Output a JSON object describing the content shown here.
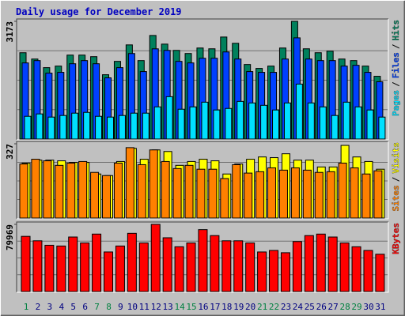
{
  "chart_data": [
    {
      "type": "bar",
      "title": "Daily usage for December 2019",
      "ylim": [
        0,
        3173
      ],
      "yticks": [
        3173
      ],
      "series_label_separator": "/",
      "series": [
        {
          "name": "Hits",
          "color": "#00805c",
          "values": [
            2327,
            2157,
            1925,
            1967,
            2263,
            2263,
            2221,
            1734,
            2094,
            2538,
            2115,
            2792,
            2559,
            2390,
            2306,
            2454,
            2433,
            2750,
            2581,
            2009,
            1904,
            1967,
            2454,
            3173,
            2433,
            2327,
            2369,
            2157,
            2115,
            1967,
            1692
          ]
        },
        {
          "name": "Files",
          "color": "#0040ff",
          "values": [
            2052,
            2115,
            1777,
            1798,
            2030,
            2115,
            2030,
            1650,
            1925,
            2305,
            1819,
            2432,
            2390,
            2094,
            2052,
            2178,
            2178,
            2348,
            2157,
            1819,
            1798,
            1798,
            2157,
            2728,
            2157,
            2115,
            2115,
            1967,
            1988,
            1798,
            1544
          ]
        },
        {
          "name": "Pages",
          "color": "#00e0ff",
          "values": [
            613,
            677,
            592,
            635,
            698,
            719,
            613,
            592,
            635,
            698,
            698,
            867,
            1142,
            804,
            867,
            994,
            783,
            825,
            1015,
            973,
            909,
            783,
            973,
            1481,
            973,
            867,
            635,
            994,
            867,
            783,
            592
          ]
        }
      ]
    },
    {
      "type": "bar",
      "ylim": [
        0,
        327
      ],
      "yticks": [
        327
      ],
      "series_label_separator": "/",
      "series": [
        {
          "name": "Visits",
          "color": "#ffff00",
          "values": [
            242,
            255,
            255,
            252,
            245,
            245,
            194,
            187,
            249,
            307,
            259,
            300,
            293,
            232,
            249,
            259,
            252,
            194,
            238,
            259,
            269,
            266,
            283,
            255,
            255,
            225,
            225,
            320,
            269,
            249,
            215
          ]
        },
        {
          "name": "Sites",
          "color": "#ff8000",
          "values": [
            238,
            259,
            252,
            232,
            242,
            249,
            201,
            187,
            242,
            310,
            235,
            300,
            249,
            218,
            232,
            215,
            215,
            174,
            235,
            198,
            204,
            221,
            211,
            221,
            211,
            201,
            204,
            242,
            221,
            194,
            208
          ]
        }
      ]
    },
    {
      "type": "bar",
      "ylim": [
        0,
        79969
      ],
      "yticks": [
        79969
      ],
      "categories": [
        "1",
        "2",
        "3",
        "4",
        "5",
        "6",
        "7",
        "8",
        "9",
        "10",
        "11",
        "12",
        "13",
        "14",
        "15",
        "16",
        "17",
        "18",
        "19",
        "20",
        "21",
        "22",
        "23",
        "24",
        "25",
        "26",
        "27",
        "28",
        "29",
        "30",
        "31"
      ],
      "category_colors": [
        "#008040",
        "#000080",
        "#000080",
        "#000080",
        "#000080",
        "#000080",
        "#008040",
        "#008040",
        "#000080",
        "#000080",
        "#000080",
        "#000080",
        "#000080",
        "#008040",
        "#008040",
        "#000080",
        "#000080",
        "#000080",
        "#000080",
        "#000080",
        "#008040",
        "#008040",
        "#000080",
        "#000080",
        "#000080",
        "#000080",
        "#000080",
        "#008040",
        "#008040",
        "#000080",
        "#000080"
      ],
      "series": [
        {
          "name": "KBytes",
          "color": "#ff0000",
          "values": [
            65700,
            60400,
            55100,
            54200,
            64900,
            57800,
            68400,
            47100,
            54200,
            69300,
            57800,
            79969,
            64000,
            53300,
            57800,
            73700,
            66600,
            60400,
            60400,
            57800,
            47100,
            48900,
            46200,
            59500,
            66600,
            68400,
            64900,
            57800,
            53300,
            48900,
            44400
          ]
        }
      ]
    }
  ]
}
